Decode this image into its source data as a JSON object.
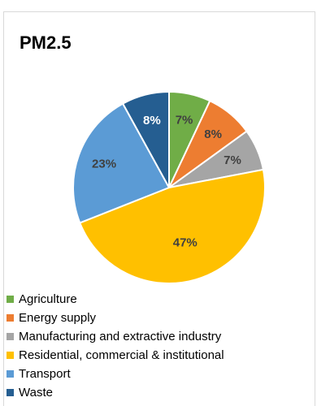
{
  "chart_data": {
    "type": "pie",
    "title": "PM2.5",
    "legend_position": "bottom-left",
    "slices": [
      {
        "name": "Agriculture",
        "value": 7,
        "label": "7%",
        "color": "#70ad47",
        "label_color": "#ffffff"
      },
      {
        "name": "Energy supply",
        "value": 8,
        "label": "8%",
        "color": "#ed7d31",
        "label_color": "#ffffff"
      },
      {
        "name": "Manufacturing and extractive industry",
        "value": 7,
        "label": "7%",
        "color": "#a5a5a5",
        "label_color": "#ffffff"
      },
      {
        "name": "Residential, commercial & institutional",
        "value": 47,
        "label": "47%",
        "color": "#ffc000",
        "label_color": "#ffffff"
      },
      {
        "name": "Transport",
        "value": 23,
        "label": "23%",
        "color": "#5b9bd5",
        "label_color": "#ffffff"
      },
      {
        "name": "Waste",
        "value": 8,
        "label": "8%",
        "color": "#255e91",
        "label_color": "#ffffff"
      }
    ]
  }
}
